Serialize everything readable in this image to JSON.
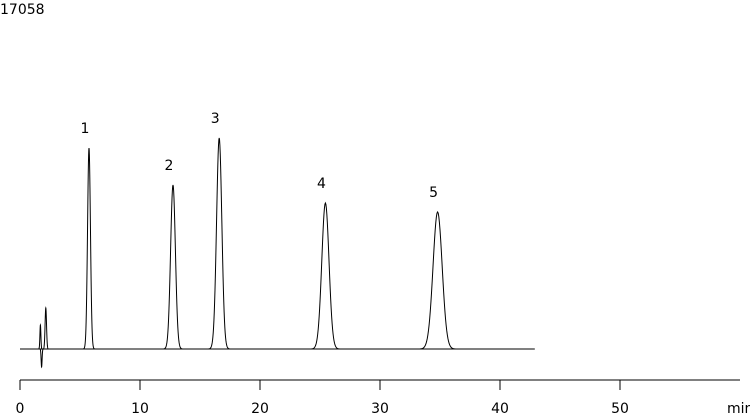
{
  "chart_data": {
    "type": "chromatogram",
    "title": "17058",
    "x_label": "min",
    "xlim": [
      0,
      60
    ],
    "xticks": [
      0,
      10,
      20,
      30,
      40,
      50
    ],
    "ylim": [
      0,
      250
    ],
    "trace_xlim": [
      0,
      42.9
    ],
    "color": "#000000",
    "peaks": {
      "labels": [
        null,
        null,
        null,
        "1",
        "2",
        "3",
        "4",
        "5"
      ],
      "x": [
        1.7,
        1.8,
        2.15,
        5.75,
        12.75,
        16.6,
        25.45,
        34.8
      ],
      "values": [
        24,
        -18,
        41,
        201,
        164,
        211,
        146,
        137
      ],
      "widths": [
        0.04,
        0.04,
        0.06,
        0.12,
        0.2,
        0.22,
        0.3,
        0.38
      ]
    }
  }
}
